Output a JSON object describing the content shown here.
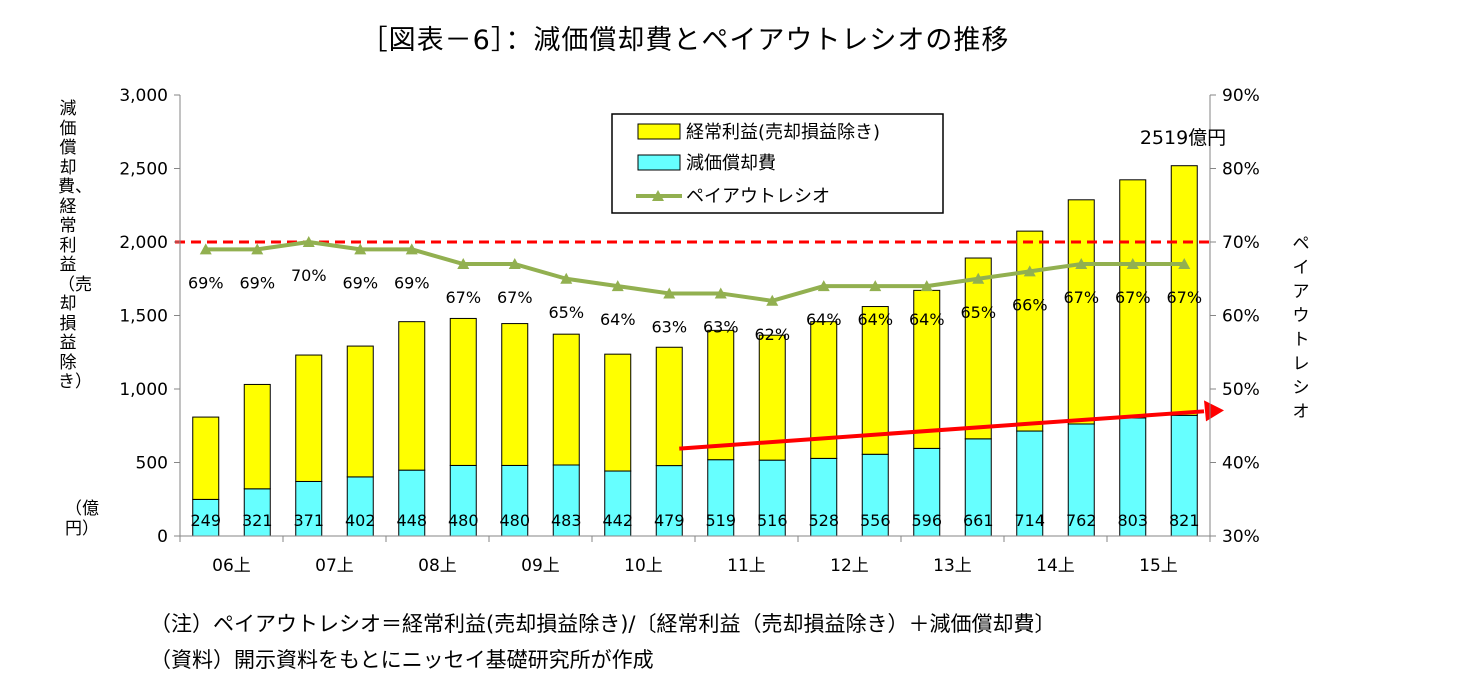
{
  "title": "［図表－6］：減価償却費とペイアウトレシオの推移",
  "notes": [
    "（注）ペイアウトレシオ＝経常利益(売却損益除き)/〔経常利益（売却損益除き）＋減価償却費〕",
    "（資料）開示資料をもとにニッセイ基礎研究所が作成"
  ],
  "chart_data": {
    "type": "bar",
    "stacked": true,
    "categories": [
      "06上",
      "",
      "07上",
      "",
      "08上",
      "",
      "09上",
      "",
      "10上",
      "",
      "11上",
      "",
      "12上",
      "",
      "13上",
      "",
      "14上",
      "",
      "15上",
      ""
    ],
    "x_tick_labels": [
      "06上",
      "07上",
      "08上",
      "09上",
      "10上",
      "11上",
      "12上",
      "13上",
      "14上",
      "15上"
    ],
    "series": [
      {
        "name": "減価償却費",
        "axis": "left",
        "color": "#66ffff",
        "values": [
          249,
          321,
          371,
          402,
          448,
          480,
          480,
          483,
          442,
          479,
          519,
          516,
          528,
          556,
          596,
          661,
          714,
          762,
          803,
          821
        ],
        "labels": [
          "249",
          "321",
          "371",
          "402",
          "448",
          "480",
          "480",
          "483",
          "442",
          "479",
          "519",
          "516",
          "528",
          "556",
          "596",
          "661",
          "714",
          "762",
          "803",
          "821"
        ]
      },
      {
        "name": "経常利益(売却損益除き)",
        "axis": "left",
        "color": "#ffff00",
        "values": [
          560,
          710,
          860,
          890,
          1010,
          1000,
          965,
          890,
          795,
          805,
          880,
          850,
          930,
          1005,
          1075,
          1230,
          1360,
          1525,
          1620,
          1698
        ]
      },
      {
        "name": "ペイアウトレシオ",
        "axis": "right",
        "type": "line",
        "color": "#92b050",
        "values": [
          69,
          69,
          70,
          69,
          69,
          67,
          67,
          65,
          64,
          63,
          63,
          62,
          64,
          64,
          64,
          65,
          66,
          67,
          67,
          67
        ],
        "labels": [
          "69%",
          "69%",
          "70%",
          "69%",
          "69%",
          "67%",
          "67%",
          "65%",
          "64%",
          "63%",
          "63%",
          "62%",
          "64%",
          "64%",
          "64%",
          "65%",
          "66%",
          "67%",
          "67%",
          "67%"
        ]
      }
    ],
    "ylim_left": [
      0,
      3000
    ],
    "y_ticks_left": [
      "0",
      "500",
      "1,000",
      "1,500",
      "2,000",
      "2,500",
      "3,000"
    ],
    "ylim_right": [
      30,
      90
    ],
    "y_ticks_right": [
      "30%",
      "40%",
      "50%",
      "60%",
      "70%",
      "80%",
      "90%"
    ],
    "ylabel_left": "減価償却費、経常利益（売却損益除き）",
    "ylabel_left_unit": "（億円）",
    "ylabel_right": "ペイアウトレシオ",
    "reference_line": {
      "axis": "right",
      "value": 70,
      "color": "#ff0000",
      "style": "dashed"
    },
    "trend_arrow": {
      "from_index": 9,
      "to_index": 19,
      "color": "#ff0000"
    },
    "annotation": "2519億円",
    "legend_position": "top-center",
    "grid": false
  }
}
